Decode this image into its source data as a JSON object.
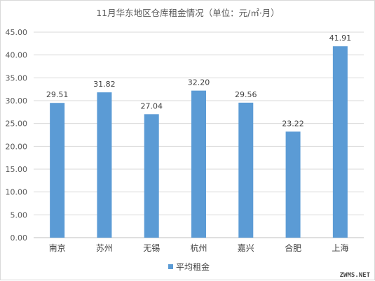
{
  "chart_data": {
    "type": "bar",
    "title": "11月华东地区仓库租金情况（单位：元/㎡·月）",
    "categories": [
      "南京",
      "苏州",
      "无锡",
      "杭州",
      "嘉兴",
      "合肥",
      "上海"
    ],
    "series": [
      {
        "name": "平均租金",
        "values": [
          29.51,
          31.82,
          27.04,
          32.2,
          29.56,
          23.22,
          41.91
        ],
        "color": "#5b9bd5"
      }
    ],
    "value_labels": [
      "29.51",
      "31.82",
      "27.04",
      "32.20",
      "29.56",
      "23.22",
      "41.91"
    ],
    "ylim": [
      0,
      45
    ],
    "yticks": [
      "0.00",
      "5.00",
      "10.00",
      "15.00",
      "20.00",
      "25.00",
      "30.00",
      "35.00",
      "40.00",
      "45.00"
    ],
    "grid": true,
    "legend_position": "bottom"
  },
  "watermark": "ZWMS.NET"
}
